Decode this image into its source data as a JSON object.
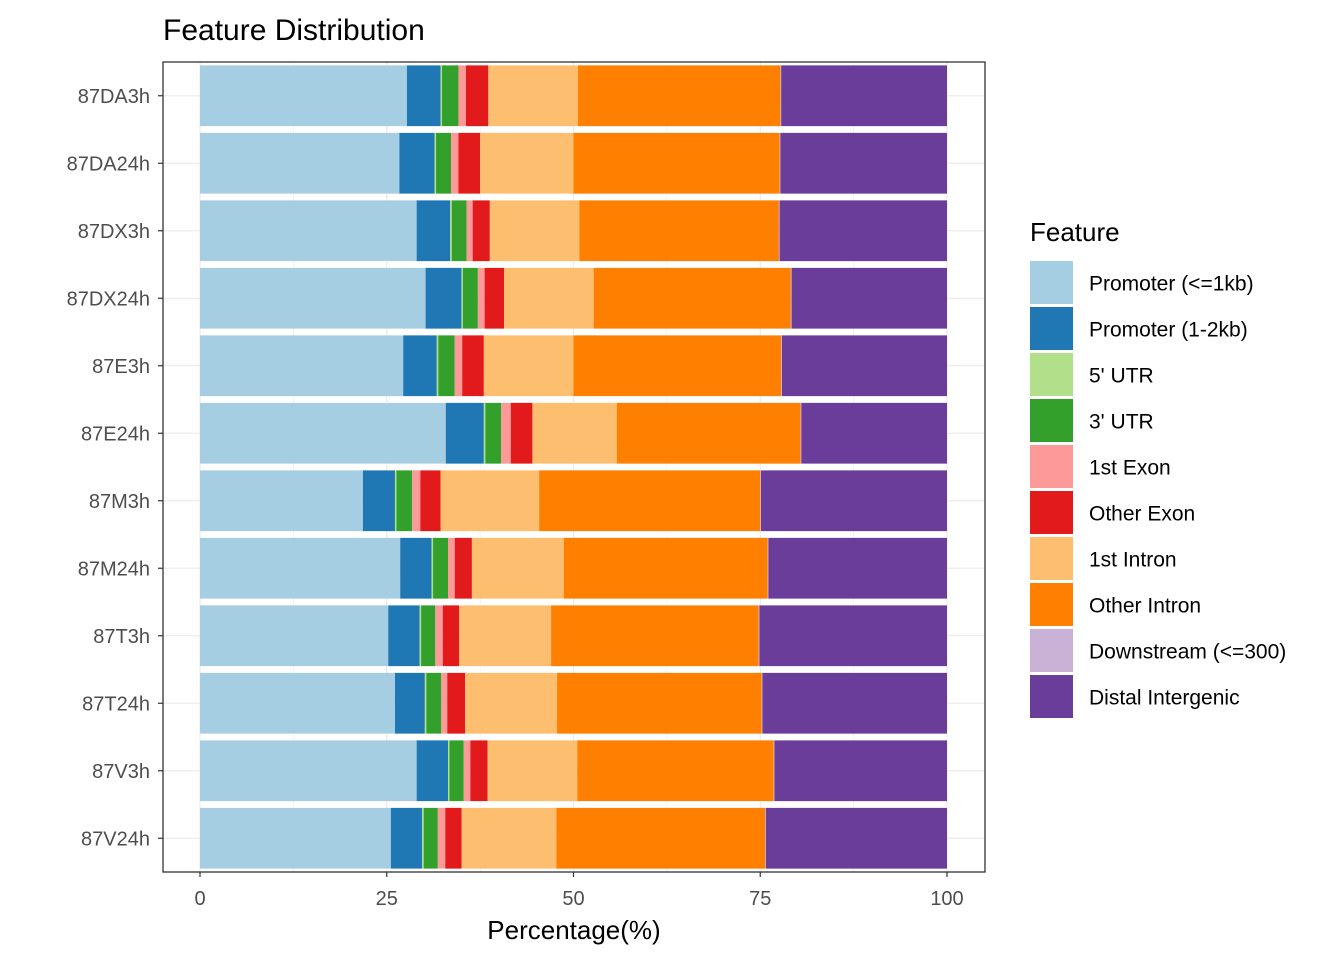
{
  "chart_data": {
    "type": "bar",
    "orientation": "horizontal",
    "stacked": true,
    "title": "Feature Distribution",
    "xlabel": "Percentage(%)",
    "ylabel": "",
    "xlim": [
      0,
      100
    ],
    "xticks": [
      0,
      25,
      50,
      75,
      100
    ],
    "grid": true,
    "legend": {
      "title": "Feature",
      "position": "right"
    },
    "categories": [
      "87DA3h",
      "87DA24h",
      "87DX3h",
      "87DX24h",
      "87E3h",
      "87E24h",
      "87M3h",
      "87M24h",
      "87T3h",
      "87T24h",
      "87V3h",
      "87V24h"
    ],
    "series": [
      {
        "name": "Promoter (<=1kb)",
        "color": "#A6CEE3",
        "values": [
          27.7,
          26.7,
          29.0,
          30.2,
          27.2,
          32.9,
          21.8,
          26.8,
          25.2,
          26.1,
          29.0,
          25.6
        ]
      },
      {
        "name": "Promoter (1-2kb)",
        "color": "#1F78B4",
        "values": [
          4.5,
          4.7,
          4.5,
          4.8,
          4.5,
          5.1,
          4.3,
          4.2,
          4.2,
          4.0,
          4.2,
          4.2
        ]
      },
      {
        "name": "5' UTR",
        "color": "#B2DF8A",
        "values": [
          0.2,
          0.2,
          0.2,
          0.2,
          0.2,
          0.2,
          0.2,
          0.2,
          0.2,
          0.2,
          0.2,
          0.2
        ]
      },
      {
        "name": "3' UTR",
        "color": "#33A02C",
        "values": [
          2.2,
          2.0,
          2.0,
          2.0,
          2.2,
          2.1,
          2.1,
          2.0,
          1.9,
          2.0,
          1.9,
          1.9
        ]
      },
      {
        "name": "1st Exon",
        "color": "#FB9A99",
        "values": [
          1.0,
          1.0,
          0.8,
          0.9,
          1.0,
          1.3,
          1.1,
          0.9,
          1.0,
          0.8,
          0.9,
          1.0
        ]
      },
      {
        "name": "Other Exon",
        "color": "#E31A1C",
        "values": [
          3.0,
          2.9,
          2.3,
          2.6,
          2.9,
          2.9,
          2.7,
          2.3,
          2.2,
          2.4,
          2.3,
          2.2
        ]
      },
      {
        "name": "1st Intron",
        "color": "#FDBF6F",
        "values": [
          12.0,
          12.5,
          12.0,
          12.0,
          12.0,
          11.3,
          13.2,
          12.3,
          12.3,
          12.3,
          12.0,
          12.7
        ]
      },
      {
        "name": "Other Intron",
        "color": "#FF7F00",
        "values": [
          27.1,
          27.6,
          26.7,
          26.4,
          27.8,
          24.6,
          29.6,
          27.3,
          27.8,
          27.4,
          26.3,
          28.0
        ]
      },
      {
        "name": "Downstream (<=300)",
        "color": "#CAB2D6",
        "values": [
          0.1,
          0.1,
          0.1,
          0.1,
          0.1,
          0.1,
          0.1,
          0.1,
          0.1,
          0.1,
          0.1,
          0.1
        ]
      },
      {
        "name": "Distal Intergenic",
        "color": "#6A3D9A",
        "values": [
          22.2,
          22.3,
          22.4,
          20.8,
          22.1,
          19.5,
          24.9,
          23.9,
          25.1,
          24.7,
          23.1,
          24.3
        ]
      }
    ]
  }
}
